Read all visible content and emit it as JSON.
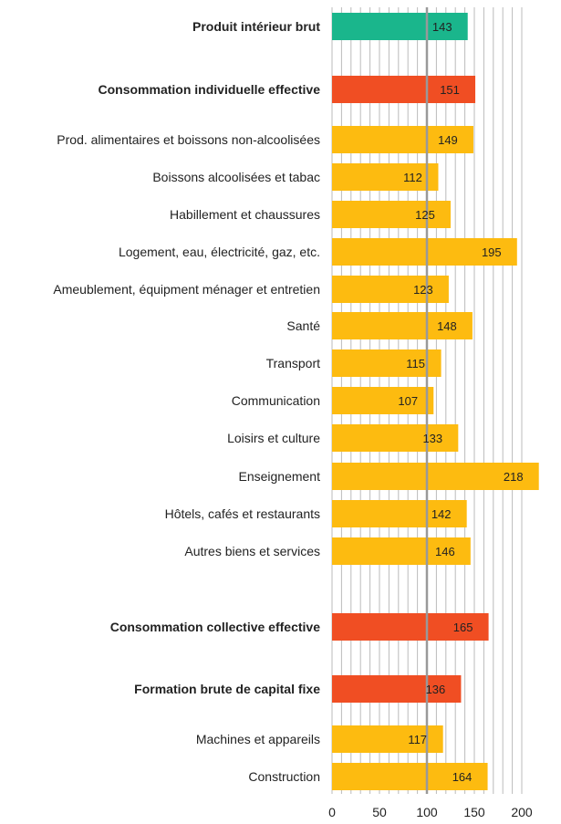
{
  "chart_data": {
    "type": "bar",
    "orientation": "horizontal",
    "title": "",
    "xlabel": "",
    "ylabel": "",
    "xlim": [
      0,
      200
    ],
    "x_ticks": [
      "0",
      "50",
      "100",
      "150",
      "200"
    ],
    "reference_line": 100,
    "grid": "vertical",
    "colors": {
      "total": "#1ab68c",
      "aggregate": "#f04e23",
      "component": "#fdbb10",
      "reference": "#999999",
      "grid": "#bbbbbb"
    },
    "categories": [
      {
        "label": "Produit intérieur brut",
        "value": 143,
        "value_label": "143",
        "kind": "total",
        "bold": true
      },
      {
        "label": "Consommation individuelle effective",
        "value": 151,
        "value_label": "151",
        "kind": "aggregate",
        "bold": true
      },
      {
        "label": "Prod. alimentaires et boissons non-alcoolisées",
        "value": 149,
        "value_label": "149",
        "kind": "component",
        "bold": false
      },
      {
        "label": "Boissons alcoolisées et tabac",
        "value": 112,
        "value_label": "112",
        "kind": "component",
        "bold": false
      },
      {
        "label": "Habillement et chaussures",
        "value": 125,
        "value_label": "125",
        "kind": "component",
        "bold": false
      },
      {
        "label": "Logement, eau, électricité, gaz, etc.",
        "value": 195,
        "value_label": "195",
        "kind": "component",
        "bold": false
      },
      {
        "label": "Ameublement, équipment ménager et entretien",
        "value": 123,
        "value_label": "123",
        "kind": "component",
        "bold": false
      },
      {
        "label": "Santé",
        "value": 148,
        "value_label": "148",
        "kind": "component",
        "bold": false
      },
      {
        "label": "Transport",
        "value": 115,
        "value_label": "115",
        "kind": "component",
        "bold": false
      },
      {
        "label": "Communication",
        "value": 107,
        "value_label": "107",
        "kind": "component",
        "bold": false
      },
      {
        "label": "Loisirs et culture",
        "value": 133,
        "value_label": "133",
        "kind": "component",
        "bold": false
      },
      {
        "label": "Enseignement",
        "value": 218,
        "value_label": "218",
        "kind": "component",
        "bold": false
      },
      {
        "label": "Hôtels, cafés et restaurants",
        "value": 142,
        "value_label": "142",
        "kind": "component",
        "bold": false
      },
      {
        "label": "Autres biens et services",
        "value": 146,
        "value_label": "146",
        "kind": "component",
        "bold": false
      },
      {
        "label": "Consommation collective effective",
        "value": 165,
        "value_label": "165",
        "kind": "aggregate",
        "bold": true
      },
      {
        "label": "Formation brute de capital fixe",
        "value": 136,
        "value_label": "136",
        "kind": "aggregate",
        "bold": true
      },
      {
        "label": "Machines et appareils",
        "value": 117,
        "value_label": "117",
        "kind": "component",
        "bold": false
      },
      {
        "label": "Construction",
        "value": 164,
        "value_label": "164",
        "kind": "component",
        "bold": false
      }
    ]
  }
}
